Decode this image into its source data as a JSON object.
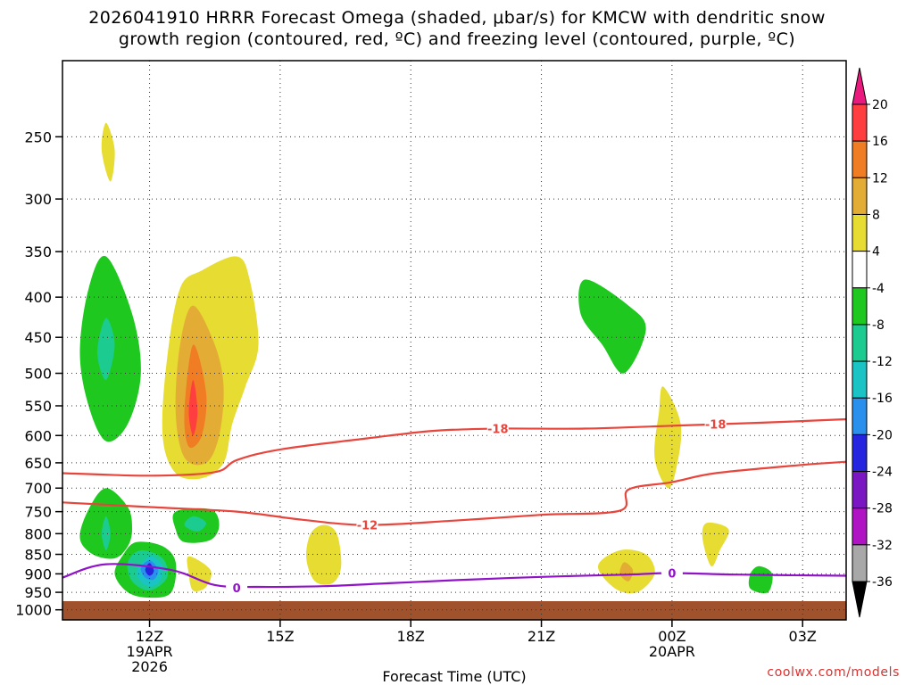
{
  "title_line1": "2026041910 HRRR Forecast Omega (shaded, μbar/s) for KMCW with dendritic snow",
  "title_line2": "growth region (contoured, red, ºC) and freezing level (contoured, purple, ºC)",
  "watermark": "coolwx.com/models",
  "chart_data": {
    "type": "time-height cross-section",
    "title": "2026041910 HRRR Forecast Omega (shaded, μbar/s) for KMCW with dendritic snow growth region (contoured, red, ºC) and freezing level (contoured, purple, ºC)",
    "xlabel": "Forecast Time (UTC)",
    "ylabel": "",
    "x_ticks": [
      {
        "hour": 12,
        "label": "12Z",
        "sub1": "19APR",
        "sub2": "2026"
      },
      {
        "hour": 15,
        "label": "15Z",
        "sub1": "",
        "sub2": ""
      },
      {
        "hour": 18,
        "label": "18Z",
        "sub1": "",
        "sub2": ""
      },
      {
        "hour": 21,
        "label": "21Z",
        "sub1": "",
        "sub2": ""
      },
      {
        "hour": 24,
        "label": "00Z",
        "sub1": "20APR",
        "sub2": ""
      },
      {
        "hour": 27,
        "label": "03Z",
        "sub1": "",
        "sub2": ""
      }
    ],
    "xlim_hours": [
      10,
      28
    ],
    "y_ticks": [
      250,
      300,
      350,
      400,
      450,
      500,
      550,
      600,
      650,
      700,
      750,
      800,
      850,
      900,
      950,
      1000
    ],
    "ylim_hpa": [
      200,
      1030
    ],
    "y_scale": "log",
    "grid": true,
    "ground_level_hpa": 975,
    "ground_color": "#a0522d",
    "colorbar": {
      "labels": [
        "20",
        "16",
        "12",
        "8",
        "4",
        "-4",
        "-8",
        "-12",
        "-16",
        "-20",
        "-24",
        "-28",
        "-32",
        "-36"
      ],
      "colors": [
        "#e9197d",
        "#ff3f3f",
        "#f07c24",
        "#e3ad35",
        "#e6dc32",
        "#ffffff",
        "#1fc81f",
        "#1bcb8f",
        "#1bc4c4",
        "#2a90ee",
        "#2525e0",
        "#7a16c2",
        "#b013c4",
        "#a8a8a8",
        "#000000"
      ]
    },
    "omega_fields": [
      {
        "value_class": 4,
        "color": "#e6dc32",
        "points": [
          [
            11.0,
            240
          ],
          [
            11.2,
            260
          ],
          [
            11.1,
            285
          ],
          [
            10.9,
            260
          ]
        ]
      },
      {
        "value_class": -4,
        "color": "#1fc81f",
        "points": [
          [
            11.0,
            355
          ],
          [
            11.6,
            420
          ],
          [
            11.8,
            500
          ],
          [
            11.5,
            580
          ],
          [
            11.0,
            610
          ],
          [
            10.6,
            550
          ],
          [
            10.4,
            470
          ],
          [
            10.6,
            390
          ]
        ]
      },
      {
        "value_class": -8,
        "color": "#1bcb8f",
        "points": [
          [
            11.0,
            425
          ],
          [
            11.2,
            460
          ],
          [
            11.0,
            510
          ],
          [
            10.8,
            470
          ]
        ]
      },
      {
        "value_class": 4,
        "color": "#e6dc32",
        "points": [
          [
            14.0,
            355
          ],
          [
            14.3,
            380
          ],
          [
            14.5,
            460
          ],
          [
            14.2,
            520
          ],
          [
            13.9,
            580
          ],
          [
            13.7,
            650
          ],
          [
            13.2,
            680
          ],
          [
            12.6,
            670
          ],
          [
            12.3,
            600
          ],
          [
            12.4,
            480
          ],
          [
            12.7,
            390
          ],
          [
            13.2,
            370
          ]
        ]
      },
      {
        "value_class": 8,
        "color": "#e3ad35",
        "points": [
          [
            13.0,
            410
          ],
          [
            13.5,
            460
          ],
          [
            13.7,
            520
          ],
          [
            13.6,
            600
          ],
          [
            13.3,
            650
          ],
          [
            12.8,
            640
          ],
          [
            12.6,
            560
          ],
          [
            12.7,
            460
          ]
        ]
      },
      {
        "value_class": 12,
        "color": "#f07c24",
        "points": [
          [
            13.0,
            460
          ],
          [
            13.3,
            530
          ],
          [
            13.2,
            600
          ],
          [
            12.9,
            620
          ],
          [
            12.8,
            560
          ]
        ]
      },
      {
        "value_class": 16,
        "color": "#ff3f3f",
        "points": [
          [
            13.0,
            510
          ],
          [
            13.1,
            560
          ],
          [
            13.0,
            600
          ],
          [
            12.9,
            560
          ]
        ]
      },
      {
        "value_class": -4,
        "color": "#1fc81f",
        "points": [
          [
            11.0,
            700
          ],
          [
            11.5,
            740
          ],
          [
            11.6,
            790
          ],
          [
            11.5,
            830
          ],
          [
            11.2,
            860
          ],
          [
            10.7,
            850
          ],
          [
            10.4,
            810
          ],
          [
            10.6,
            745
          ]
        ]
      },
      {
        "value_class": -8,
        "color": "#1bcb8f",
        "points": [
          [
            11.0,
            760
          ],
          [
            11.1,
            800
          ],
          [
            11.0,
            840
          ],
          [
            10.9,
            800
          ]
        ]
      },
      {
        "value_class": -4,
        "color": "#1fc81f",
        "points": [
          [
            11.7,
            820
          ],
          [
            12.3,
            830
          ],
          [
            12.6,
            870
          ],
          [
            12.5,
            950
          ],
          [
            12.0,
            965
          ],
          [
            11.5,
            950
          ],
          [
            11.2,
            900
          ],
          [
            11.4,
            850
          ]
        ]
      },
      {
        "value_class": -8,
        "color": "#1bcb8f",
        "points": [
          [
            11.8,
            840
          ],
          [
            12.3,
            860
          ],
          [
            12.4,
            910
          ],
          [
            12.0,
            945
          ],
          [
            11.6,
            920
          ],
          [
            11.5,
            870
          ]
        ]
      },
      {
        "value_class": -12,
        "color": "#1bc4c4",
        "points": [
          [
            12.0,
            855
          ],
          [
            12.3,
            880
          ],
          [
            12.2,
            925
          ],
          [
            11.9,
            930
          ],
          [
            11.7,
            895
          ]
        ]
      },
      {
        "value_class": -16,
        "color": "#2a90ee",
        "points": [
          [
            12.0,
            865
          ],
          [
            12.2,
            890
          ],
          [
            12.1,
            915
          ],
          [
            11.9,
            910
          ],
          [
            11.8,
            885
          ]
        ]
      },
      {
        "value_class": -20,
        "color": "#2525e0",
        "points": [
          [
            12.0,
            872
          ],
          [
            12.1,
            892
          ],
          [
            12.0,
            905
          ],
          [
            11.9,
            890
          ]
        ]
      },
      {
        "value_class": -4,
        "color": "#1fc81f",
        "points": [
          [
            12.6,
            750
          ],
          [
            13.4,
            745
          ],
          [
            13.6,
            780
          ],
          [
            13.4,
            815
          ],
          [
            12.8,
            820
          ],
          [
            12.6,
            790
          ]
        ]
      },
      {
        "value_class": -8,
        "color": "#1bcb8f",
        "points": [
          [
            13.0,
            760
          ],
          [
            13.3,
            775
          ],
          [
            13.1,
            795
          ],
          [
            12.8,
            780
          ]
        ]
      },
      {
        "value_class": 4,
        "color": "#e6dc32",
        "points": [
          [
            12.9,
            855
          ],
          [
            13.4,
            890
          ],
          [
            13.3,
            935
          ],
          [
            13.0,
            945
          ],
          [
            12.9,
            900
          ]
        ]
      },
      {
        "value_class": 4,
        "color": "#e6dc32",
        "points": [
          [
            16.0,
            780
          ],
          [
            16.3,
            800
          ],
          [
            16.4,
            880
          ],
          [
            16.2,
            925
          ],
          [
            15.8,
            920
          ],
          [
            15.6,
            860
          ],
          [
            15.7,
            800
          ]
        ]
      },
      {
        "value_class": -4,
        "color": "#1fc81f",
        "points": [
          [
            22.0,
            380
          ],
          [
            23.0,
            410
          ],
          [
            23.4,
            440
          ],
          [
            22.9,
            500
          ],
          [
            22.4,
            460
          ],
          [
            21.9,
            420
          ]
        ]
      },
      {
        "value_class": 4,
        "color": "#e6dc32",
        "points": [
          [
            23.8,
            520
          ],
          [
            24.2,
            580
          ],
          [
            24.1,
            660
          ],
          [
            23.9,
            700
          ],
          [
            23.6,
            640
          ],
          [
            23.7,
            560
          ]
        ]
      },
      {
        "value_class": 4,
        "color": "#e6dc32",
        "points": [
          [
            22.8,
            840
          ],
          [
            23.4,
            850
          ],
          [
            23.6,
            900
          ],
          [
            23.2,
            950
          ],
          [
            22.7,
            940
          ],
          [
            22.3,
            880
          ]
        ]
      },
      {
        "value_class": 8,
        "color": "#e3ad35",
        "points": [
          [
            22.9,
            870
          ],
          [
            23.1,
            890
          ],
          [
            23.0,
            920
          ],
          [
            22.8,
            900
          ]
        ]
      },
      {
        "value_class": 4,
        "color": "#e6dc32",
        "points": [
          [
            24.8,
            775
          ],
          [
            25.3,
            790
          ],
          [
            25.1,
            840
          ],
          [
            24.9,
            880
          ],
          [
            24.7,
            810
          ]
        ]
      },
      {
        "value_class": -4,
        "color": "#1fc81f",
        "points": [
          [
            26.0,
            880
          ],
          [
            26.3,
            900
          ],
          [
            26.2,
            950
          ],
          [
            25.8,
            940
          ],
          [
            25.8,
            900
          ]
        ]
      }
    ],
    "contours": [
      {
        "name": "-18",
        "color": "#e8453c",
        "label": "-18",
        "label_at": [
          [
            20.0,
            588
          ],
          [
            25.0,
            580
          ]
        ],
        "points": [
          [
            10.0,
            670
          ],
          [
            12.0,
            675
          ],
          [
            13.5,
            668
          ],
          [
            14.0,
            645
          ],
          [
            15.0,
            625
          ],
          [
            17.0,
            605
          ],
          [
            18.5,
            592
          ],
          [
            20.0,
            588
          ],
          [
            22.0,
            588
          ],
          [
            24.0,
            583
          ],
          [
            26.0,
            578
          ],
          [
            28.0,
            572
          ]
        ]
      },
      {
        "name": "-12",
        "color": "#e8453c",
        "label": "-12",
        "label_at": [
          [
            17.0,
            780
          ]
        ],
        "points": [
          [
            10.0,
            730
          ],
          [
            12.0,
            740
          ],
          [
            14.0,
            750
          ],
          [
            15.5,
            768
          ],
          [
            17.0,
            780
          ],
          [
            19.0,
            770
          ],
          [
            21.0,
            757
          ],
          [
            22.8,
            748
          ],
          [
            23.0,
            703
          ],
          [
            24.0,
            688
          ],
          [
            25.0,
            670
          ],
          [
            27.0,
            654
          ],
          [
            28.0,
            648
          ]
        ]
      },
      {
        "name": "0",
        "color": "#9013c8",
        "label": "0",
        "label_at": [
          [
            14.0,
            937
          ],
          [
            24.0,
            898
          ]
        ],
        "points": [
          [
            10.0,
            910
          ],
          [
            11.0,
            875
          ],
          [
            12.5,
            890
          ],
          [
            13.5,
            930
          ],
          [
            14.5,
            935
          ],
          [
            16.0,
            933
          ],
          [
            17.5,
            925
          ],
          [
            19.0,
            917
          ],
          [
            21.0,
            908
          ],
          [
            23.0,
            902
          ],
          [
            24.0,
            898
          ],
          [
            25.5,
            902
          ],
          [
            28.0,
            905
          ]
        ]
      }
    ]
  }
}
